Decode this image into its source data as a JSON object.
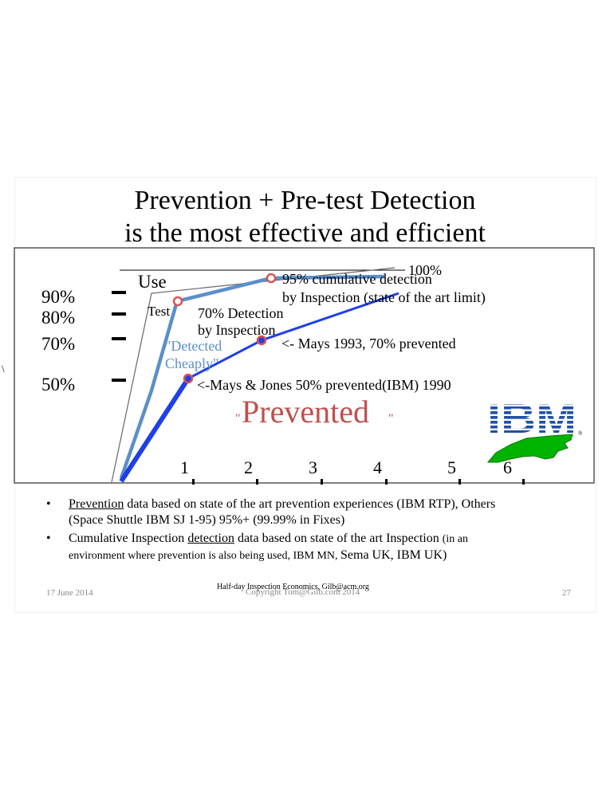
{
  "slide": {
    "title_line1": "Prevention + Pre-test Detection",
    "title_line2": "is the most effective and efficient"
  },
  "chart_data": {
    "type": "line",
    "y_labels": [
      "90%",
      "80%",
      "70%",
      "50%"
    ],
    "top_label": "100%",
    "x_ticks": [
      "1",
      "2",
      "3",
      "4",
      "5",
      "6"
    ],
    "stage_labels": {
      "use": "Use",
      "test": "Test"
    },
    "series": [
      {
        "name": "Detection",
        "color": "#5b8fc9",
        "points": [
          [
            0,
            0
          ],
          [
            1,
            85
          ],
          [
            2,
            95
          ],
          [
            3,
            97
          ],
          [
            4,
            98
          ]
        ]
      },
      {
        "name": "Prevention",
        "color": "#1f3fe8",
        "points": [
          [
            0,
            0
          ],
          [
            1,
            50
          ],
          [
            2,
            70
          ],
          [
            3,
            82
          ],
          [
            4,
            98
          ]
        ]
      }
    ],
    "annotations": {
      "a95_line1": "95% cumulative detection",
      "a95_line2": "by Inspection (state of the art limit)",
      "a70_line1": "70% Detection",
      "a70_line2": "by Inspection",
      "mays1993": "<- Mays 1993, 70% prevented",
      "mays_jones": "<-Mays & Jones 50% prevented(IBM) 1990",
      "detected_cheaply_1": "\"Detected",
      "detected_cheaply_2": "Cheaply\"",
      "prevented": "Prevented",
      "quote": "\"",
      "backslash": "\\"
    },
    "colors": {
      "prevented": "#c0504d",
      "detected": "#5b8fc9",
      "ibm": "#1f4fa8",
      "nc": "#00b300"
    }
  },
  "logo": {
    "ibm": "IBM",
    "reg": "®"
  },
  "bullets": [
    {
      "dot": "•",
      "u": "Prevention",
      "rest": " data based on state of the art prevention experiences (IBM RTP), Others",
      "line2": "(Space Shuttle IBM SJ 1-95) 95%+  (99.99% in Fixes)"
    },
    {
      "dot": "•",
      "pre": "Cumulative Inspection ",
      "u": "detection",
      "rest": " data based on state of the art Inspection ",
      "small": "(in an",
      "line2_small": "environment where prevention is also being used, IBM MN, ",
      "line2_big": "Sema UK, IBM UK)"
    }
  ],
  "footer": {
    "date": "17 June 2014",
    "copyright": "Copyright Tom@Gilb.com 2014",
    "overlay": "Half-day Inspection Economics, Gilb@acm.org",
    "page": "27"
  }
}
